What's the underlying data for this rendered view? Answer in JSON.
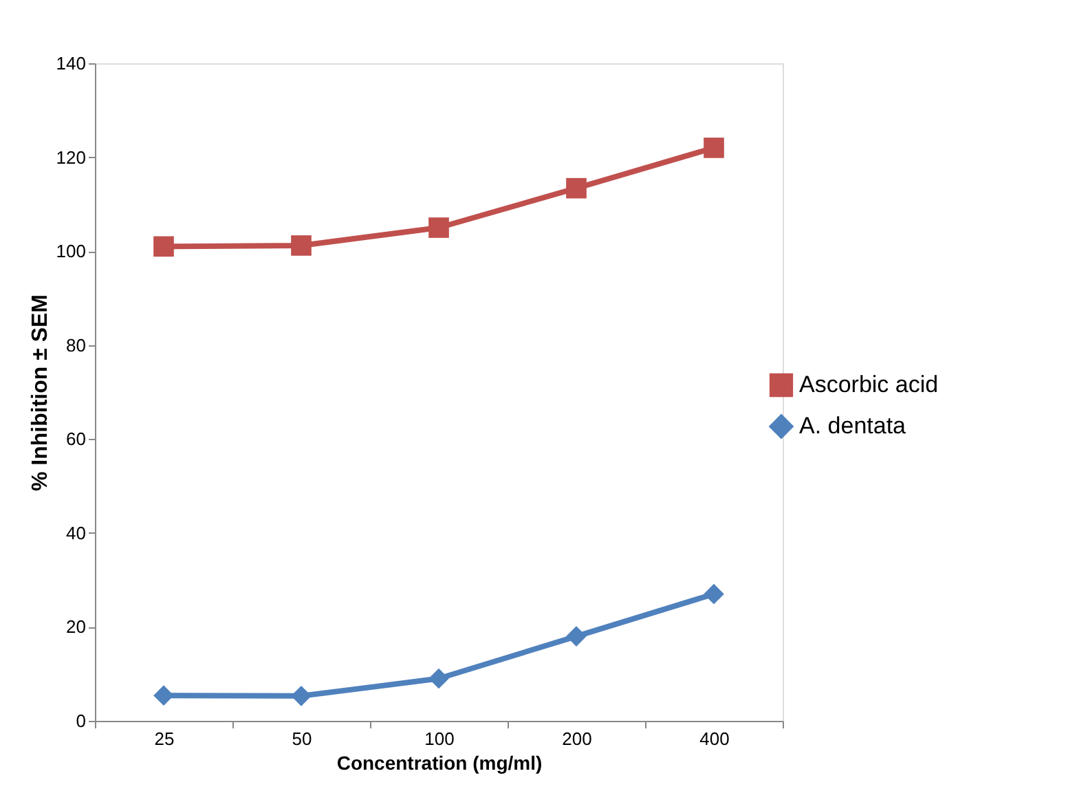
{
  "chart_data": {
    "type": "line",
    "xlabel": "Concentration (mg/ml)",
    "ylabel": "% Inhibition ± SEM",
    "categories": [
      "25",
      "50",
      "100",
      "200",
      "400"
    ],
    "series": [
      {
        "name": "Ascorbic acid",
        "color": "#c0504d",
        "marker": "square",
        "values": [
          101,
          101.2,
          105,
          113.4,
          122
        ]
      },
      {
        "name": "A. dentata",
        "color": "#4f81bd",
        "marker": "diamond",
        "values": [
          5.4,
          5.3,
          9,
          18,
          27
        ]
      }
    ],
    "ylim": [
      0,
      140
    ],
    "yticks": [
      0,
      20,
      40,
      60,
      80,
      100,
      120,
      140
    ],
    "grid": false,
    "legend": "right",
    "line_style": "solid"
  }
}
